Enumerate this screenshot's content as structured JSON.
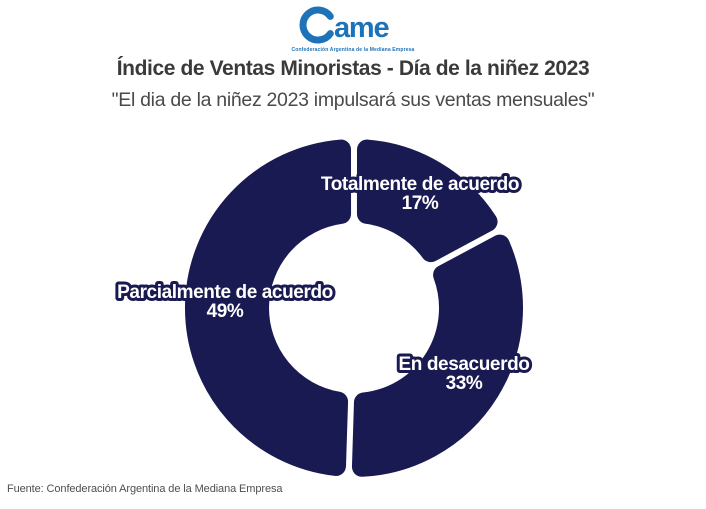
{
  "logo": {
    "brand": "Came",
    "brand_ame": "ame",
    "caption": "Confederación Argentina de la Mediana Empresa",
    "color": "#1e73b8"
  },
  "header": {
    "title": "Índice de Ventas Minoristas - Día de la niñez 2023",
    "subtitle": "\"El dia de la niñez 2023 impulsará sus ventas mensuales\""
  },
  "chart_data": {
    "type": "pie",
    "subtype": "donut",
    "title": "Índice de Ventas Minoristas - Día de la niñez 2023",
    "subtitle": "\"El dia de la niñez 2023 impulsará sus ventas mensuales\"",
    "categories": [
      "Totalmente de acuerdo",
      "En desacuerdo",
      "Parcialmente de acuerdo"
    ],
    "values": [
      17,
      33,
      49
    ],
    "unit": "%",
    "labels": [
      {
        "name": "Totalmente de acuerdo",
        "value_label": "17%"
      },
      {
        "name": "En desacuerdo",
        "value_label": "33%"
      },
      {
        "name": "Parcialmente de acuerdo",
        "value_label": "49%"
      }
    ],
    "start_angle_deg": 0,
    "direction": "clockwise",
    "donut_hole_ratio": 0.5,
    "rounded_corners": true,
    "legend": "labels-on-chart",
    "colors": {
      "segment": "#1a1a52",
      "label_fill": "#ffffff",
      "label_outline": "#1a1a52"
    }
  },
  "footer": {
    "source": "Fuente: Confederación Argentina de la Mediana Empresa"
  }
}
